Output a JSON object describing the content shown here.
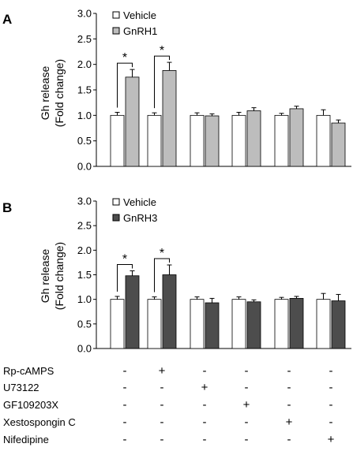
{
  "colors": {
    "vehicle": "#ffffff",
    "gnrh1": "#bdbdbd",
    "gnrh3": "#4d4d4d",
    "axis": "#000000"
  },
  "chart_data": [
    {
      "type": "bar",
      "panel_label": "A",
      "ylabel": [
        "Gh release",
        "(Fold change)"
      ],
      "ylim": [
        0,
        3.0
      ],
      "yticks": [
        "0.0",
        "0.5",
        "1.0",
        "1.5",
        "2.0",
        "2.5",
        "3.0"
      ],
      "legend_position": "top-left",
      "series": [
        {
          "name": "Vehicle",
          "color": "#ffffff",
          "values": [
            1.0,
            1.0,
            1.0,
            1.0,
            1.0,
            1.0
          ],
          "errors": [
            0.06,
            0.05,
            0.05,
            0.06,
            0.04,
            0.11
          ]
        },
        {
          "name": "GnRH1",
          "color": "#bdbdbd",
          "values": [
            1.75,
            1.88,
            0.99,
            1.09,
            1.13,
            0.85
          ],
          "errors": [
            0.15,
            0.16,
            0.04,
            0.06,
            0.05,
            0.06
          ]
        }
      ],
      "significance": [
        {
          "group": 0,
          "label": "*"
        },
        {
          "group": 1,
          "label": "*"
        }
      ]
    },
    {
      "type": "bar",
      "panel_label": "B",
      "ylabel": [
        "Gh release",
        "(Fold change)"
      ],
      "ylim": [
        0,
        3.0
      ],
      "yticks": [
        "0.0",
        "0.5",
        "1.0",
        "1.5",
        "2.0",
        "2.5",
        "3.0"
      ],
      "legend_position": "top-left",
      "series": [
        {
          "name": "Vehicle",
          "color": "#ffffff",
          "values": [
            1.0,
            1.0,
            1.0,
            1.0,
            1.0,
            1.0
          ],
          "errors": [
            0.06,
            0.05,
            0.05,
            0.05,
            0.04,
            0.12
          ]
        },
        {
          "name": "GnRH3",
          "color": "#4d4d4d",
          "values": [
            1.48,
            1.5,
            0.93,
            0.95,
            1.02,
            0.97
          ],
          "errors": [
            0.1,
            0.2,
            0.09,
            0.04,
            0.04,
            0.13
          ]
        }
      ],
      "significance": [
        {
          "group": 0,
          "label": "*"
        },
        {
          "group": 1,
          "label": "*"
        }
      ]
    }
  ],
  "treatment_table": {
    "rows": [
      {
        "label": "Rp-cAMPS",
        "cells": [
          "-",
          "+",
          "-",
          "-",
          "-",
          "-"
        ]
      },
      {
        "label": "U73122",
        "cells": [
          "-",
          "-",
          "+",
          "-",
          "-",
          "-"
        ]
      },
      {
        "label": "GF109203X",
        "cells": [
          "-",
          "-",
          "-",
          "+",
          "-",
          "-"
        ]
      },
      {
        "label": "Xestospongin C",
        "cells": [
          "-",
          "-",
          "-",
          "-",
          "+",
          "-"
        ]
      },
      {
        "label": "Nifedipine",
        "cells": [
          "-",
          "-",
          "-",
          "-",
          "-",
          "+"
        ]
      }
    ]
  }
}
